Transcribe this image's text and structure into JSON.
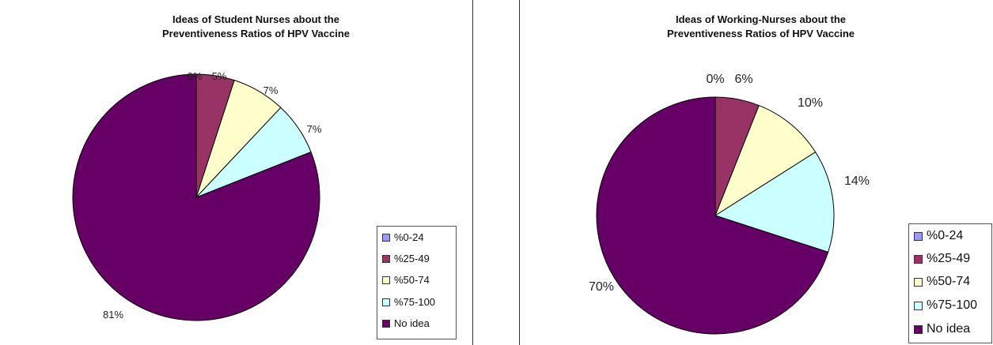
{
  "legend_labels": [
    "%0-24",
    "%25-49",
    "%50-74",
    "%75-100",
    "No idea"
  ],
  "colors": [
    "#9999ff",
    "#993366",
    "#ffffcc",
    "#ccffff",
    "#660066"
  ],
  "chart_data": [
    {
      "type": "pie",
      "title_line1": "Ideas of Student Nurses about the",
      "title_line2": "Preventiveness Ratios of HPV Vaccine",
      "legend_placement": "bottom-right",
      "slices": [
        {
          "label": "%0-24",
          "value": 0,
          "display": "0%"
        },
        {
          "label": "%25-49",
          "value": 5,
          "display": "5%"
        },
        {
          "label": "%50-74",
          "value": 7,
          "display": "7%"
        },
        {
          "label": "%75-100",
          "value": 7,
          "display": "7%"
        },
        {
          "label": "No idea",
          "value": 81,
          "display": "81%"
        }
      ]
    },
    {
      "type": "pie",
      "title_line1": "Ideas of Working-Nurses about the",
      "title_line2": "Preventiveness Ratios of HPV Vaccine",
      "legend_placement": "bottom-right",
      "slices": [
        {
          "label": "%0-24",
          "value": 0,
          "display": "0%"
        },
        {
          "label": "%25-49",
          "value": 6,
          "display": "6%"
        },
        {
          "label": "%50-74",
          "value": 10,
          "display": "10%"
        },
        {
          "label": "%75-100",
          "value": 14,
          "display": "14%"
        },
        {
          "label": "No idea",
          "value": 70,
          "display": "70%"
        }
      ]
    }
  ]
}
